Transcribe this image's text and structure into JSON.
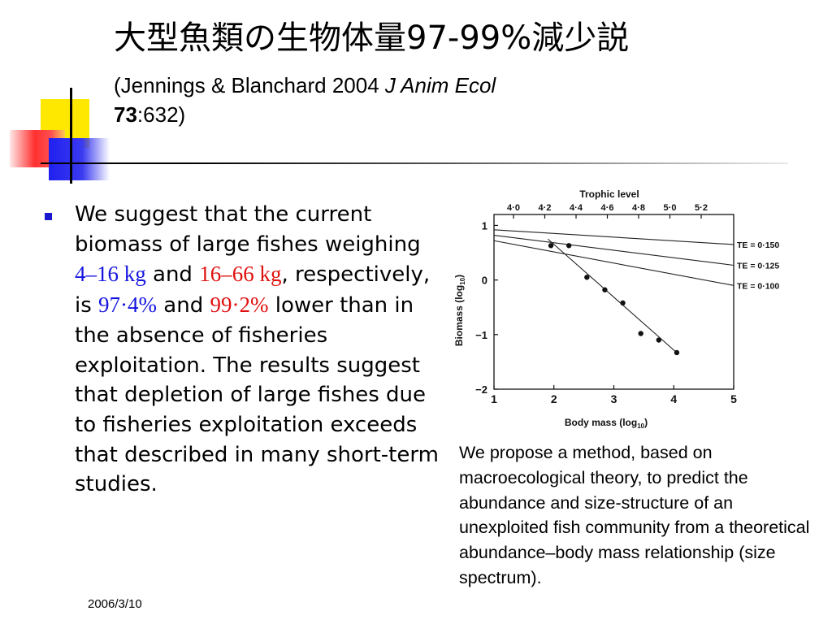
{
  "slide": {
    "title": "大型魚類の生物体量97-99%減少説",
    "citation": {
      "prefix": "(Jennings & Blanchard 2004 ",
      "journal": "J Anim Ecol",
      "volume": "73",
      "pages": ":632)"
    },
    "bullet": {
      "t1": "We suggest that the current biomass of large fishes weighing ",
      "r1": "4–16 kg",
      "t2": " and ",
      "r2": "16–66 kg",
      "t3": ", respectively, is ",
      "p1": "97·4%",
      "t4": " and ",
      "p2": "99·2%",
      "t5": " lower than in the absence of fisheries exploitation. The results suggest that depletion of large fishes due to fisheries exploitation exceeds that described in many short-term studies."
    },
    "caption": "We propose a method, based on macroecological theory, to predict the abundance and size-structure of an unexploited fish community from a theoretical abundance–body mass relationship (size spectrum).",
    "date": "2006/3/10",
    "colors": {
      "accent_blue": "#1515e0",
      "accent_red": "#e01010",
      "deco_yellow": "#ffe800",
      "deco_blue": "#2020f0",
      "deco_red": "#ff3030"
    }
  },
  "chart_data": {
    "type": "scatter",
    "title": "",
    "top_axis_label": "Trophic level",
    "top_ticks": [
      "4·0",
      "4·2",
      "4·4",
      "4·6",
      "4·8",
      "5·0",
      "5·2"
    ],
    "xlabel_main": "Body mass (log",
    "xlabel_sub": "10",
    "xlabel_end": ")",
    "ylabel_main": "Biomass (log",
    "ylabel_sub": "10",
    "ylabel_end": ")",
    "xlim": [
      1,
      5
    ],
    "ylim": [
      -2,
      1.2
    ],
    "x_ticks": [
      1,
      2,
      3,
      4,
      5
    ],
    "y_ticks": [
      1,
      0,
      -1,
      -2
    ],
    "x_tick_labels": [
      "1",
      "2",
      "3",
      "4",
      "5"
    ],
    "y_tick_labels": [
      "1",
      "0",
      "−1",
      "−2"
    ],
    "points": [
      {
        "x": 1.95,
        "y": 0.63
      },
      {
        "x": 2.25,
        "y": 0.63
      },
      {
        "x": 2.55,
        "y": 0.05
      },
      {
        "x": 2.85,
        "y": -0.18
      },
      {
        "x": 3.15,
        "y": -0.42
      },
      {
        "x": 3.45,
        "y": -0.98
      },
      {
        "x": 3.75,
        "y": -1.1
      },
      {
        "x": 4.05,
        "y": -1.33
      }
    ],
    "fit_line": {
      "x": [
        1.9,
        4.08
      ],
      "y": [
        0.75,
        -1.36
      ]
    },
    "te_lines": [
      {
        "name": "TE = 0·150",
        "x": [
          1,
          5
        ],
        "y": [
          0.92,
          0.65
        ]
      },
      {
        "name": "TE = 0·125",
        "x": [
          1,
          5
        ],
        "y": [
          0.82,
          0.27
        ]
      },
      {
        "name": "TE = 0·100",
        "x": [
          1,
          5
        ],
        "y": [
          0.72,
          -0.1
        ]
      }
    ]
  }
}
